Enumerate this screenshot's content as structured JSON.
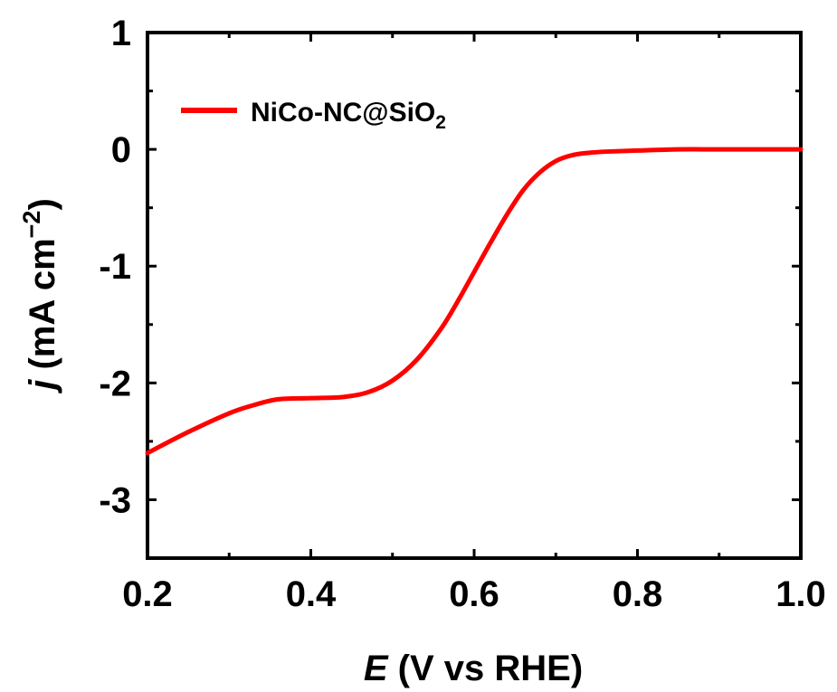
{
  "chart_data": {
    "type": "line",
    "xlabel": {
      "symbol": "E",
      "rest": " (V vs RHE)"
    },
    "ylabel": {
      "symbol": "j",
      "rest": " (mA cm",
      "sup": "−2",
      "close": ")"
    },
    "xlim": [
      0.2,
      1.0
    ],
    "ylim": [
      -3.5,
      1.0
    ],
    "x_ticks": [
      0.2,
      0.4,
      0.6,
      0.8,
      1.0
    ],
    "x_tick_labels": [
      "0.2",
      "0.4",
      "0.6",
      "0.8",
      "1.0"
    ],
    "y_ticks": [
      1,
      0,
      -1,
      -2,
      -3
    ],
    "y_tick_labels": [
      "1",
      "0",
      "-1",
      "-2",
      "-3"
    ],
    "grid": false,
    "legend_position": "top-left",
    "series": [
      {
        "name": "NiCo-NC@SiO2",
        "legend_label": {
          "main": "NiCo-NC@SiO",
          "sub": "2"
        },
        "color": "#ff0000",
        "x": [
          0.2,
          0.25,
          0.3,
          0.33,
          0.36,
          0.4,
          0.44,
          0.47,
          0.5,
          0.53,
          0.56,
          0.58,
          0.6,
          0.62,
          0.64,
          0.66,
          0.68,
          0.7,
          0.72,
          0.74,
          0.76,
          0.8,
          0.85,
          0.9,
          0.95,
          1.0
        ],
        "y": [
          -2.6,
          -2.42,
          -2.26,
          -2.19,
          -2.14,
          -2.13,
          -2.12,
          -2.08,
          -1.98,
          -1.8,
          -1.53,
          -1.3,
          -1.05,
          -0.8,
          -0.56,
          -0.35,
          -0.2,
          -0.1,
          -0.05,
          -0.03,
          -0.02,
          -0.01,
          0.0,
          0.0,
          0.0,
          0.0
        ]
      }
    ]
  }
}
